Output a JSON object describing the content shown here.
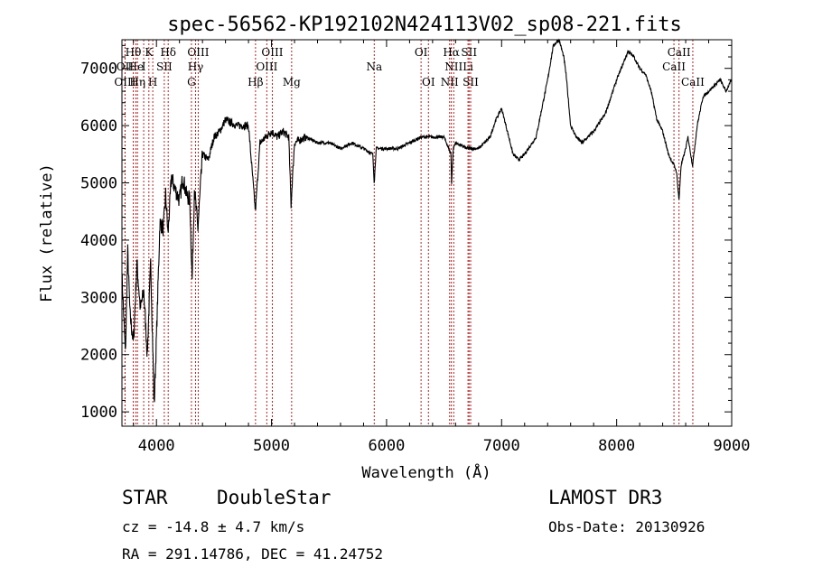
{
  "chart_data": {
    "type": "line",
    "title": "spec-56562-KP192102N424113V02_sp08-221.fits",
    "xlabel": "Wavelength (Å)",
    "ylabel": "Flux (relative)",
    "xlim": [
      3700,
      9000
    ],
    "ylim": [
      750,
      7500
    ],
    "xticks": [
      4000,
      5000,
      6000,
      7000,
      8000,
      9000
    ],
    "yticks": [
      1000,
      2000,
      3000,
      4000,
      5000,
      6000,
      7000
    ],
    "grid": false,
    "legend": "none",
    "line_color": "#000000",
    "marker_color": "#b22222",
    "series": [
      {
        "x": [
          3700,
          3730,
          3750,
          3770,
          3800,
          3830,
          3860,
          3890,
          3920,
          3950,
          3980,
          4000,
          4030,
          4060,
          4080,
          4100,
          4130,
          4160,
          4200,
          4230,
          4260,
          4290,
          4310,
          4330,
          4360,
          4400,
          4450,
          4500,
          4550,
          4600,
          4700,
          4800,
          4860,
          4900,
          4950,
          5000,
          5050,
          5100,
          5150,
          5170,
          5180,
          5200,
          5300,
          5400,
          5500,
          5600,
          5700,
          5800,
          5880,
          5893,
          5910,
          6000,
          6100,
          6200,
          6300,
          6400,
          6500,
          6560,
          6565,
          6580,
          6600,
          6700,
          6800,
          6900,
          6950,
          7000,
          7050,
          7100,
          7150,
          7200,
          7300,
          7400,
          7450,
          7500,
          7540,
          7560,
          7600,
          7650,
          7700,
          7750,
          7800,
          7900,
          8000,
          8100,
          8150,
          8200,
          8250,
          8300,
          8350,
          8400,
          8450,
          8500,
          8520,
          8542,
          8560,
          8600,
          8620,
          8660,
          8700,
          8750,
          8800,
          8850,
          8900,
          8950,
          9000
        ],
        "y": [
          3400,
          2000,
          3800,
          2700,
          2200,
          3600,
          2800,
          3100,
          2000,
          3600,
          1100,
          2300,
          4300,
          4200,
          4800,
          4100,
          5100,
          4900,
          4700,
          5100,
          4800,
          4700,
          3300,
          4900,
          4200,
          5500,
          5400,
          5800,
          5900,
          6100,
          6000,
          6000,
          4500,
          5700,
          5800,
          5900,
          5800,
          5900,
          5800,
          4600,
          5000,
          5700,
          5800,
          5700,
          5700,
          5600,
          5700,
          5600,
          5500,
          5000,
          5600,
          5600,
          5600,
          5700,
          5800,
          5800,
          5800,
          5500,
          5000,
          5600,
          5700,
          5600,
          5600,
          5800,
          6100,
          6300,
          5900,
          5500,
          5400,
          5500,
          5800,
          6800,
          7400,
          7500,
          7200,
          6900,
          6000,
          5800,
          5700,
          5800,
          5900,
          6200,
          6800,
          7300,
          7200,
          7000,
          6900,
          6600,
          6100,
          5900,
          5500,
          5300,
          5200,
          4700,
          5300,
          5600,
          5800,
          5300,
          6000,
          6500,
          6600,
          6700,
          6800,
          6600,
          6800
        ]
      }
    ],
    "spectral_lines": [
      {
        "label": "Hθ",
        "x": 3798,
        "row": 0
      },
      {
        "label": "K",
        "x": 3934,
        "row": 0
      },
      {
        "label": "Hδ",
        "x": 4102,
        "row": 0
      },
      {
        "label": "OIII",
        "x": 4363,
        "row": 0
      },
      {
        "label": "OIII",
        "x": 5007,
        "row": 0
      },
      {
        "label": "OI",
        "x": 6300,
        "row": 0
      },
      {
        "label": "Hα",
        "x": 6563,
        "row": 0
      },
      {
        "label": "SII",
        "x": 6717,
        "row": 0
      },
      {
        "label": "CaII",
        "x": 8542,
        "row": 0
      },
      {
        "label": "OII",
        "x": 3727,
        "row": 1
      },
      {
        "label": "He",
        "x": 3820,
        "row": 1
      },
      {
        "label": "I",
        "x": 3889,
        "row": 1
      },
      {
        "label": "SII",
        "x": 4068,
        "row": 1
      },
      {
        "label": "Hγ",
        "x": 4340,
        "row": 1
      },
      {
        "label": "OIII",
        "x": 4959,
        "row": 1
      },
      {
        "label": "Na",
        "x": 5893,
        "row": 1
      },
      {
        "label": "NII",
        "x": 6584,
        "row": 1
      },
      {
        "label": "Li",
        "x": 6708,
        "row": 1
      },
      {
        "label": "CaII",
        "x": 8498,
        "row": 1
      },
      {
        "label": "OIII",
        "x": 3727,
        "row": 2
      },
      {
        "label": "Hη",
        "x": 3835,
        "row": 2
      },
      {
        "label": "H",
        "x": 3968,
        "row": 2
      },
      {
        "label": "G",
        "x": 4304,
        "row": 2
      },
      {
        "label": "Hβ",
        "x": 4861,
        "row": 2
      },
      {
        "label": "Mg",
        "x": 5175,
        "row": 2
      },
      {
        "label": "OI",
        "x": 6364,
        "row": 2
      },
      {
        "label": "NII",
        "x": 6548,
        "row": 2
      },
      {
        "label": "SII",
        "x": 6731,
        "row": 2
      },
      {
        "label": "CaII",
        "x": 8662,
        "row": 2
      }
    ]
  },
  "footer": {
    "class_label": "STAR",
    "subclass_label": "DoubleStar",
    "survey_label": "LAMOST DR3",
    "redshift_text": "cz = -14.8 ± 4.7 km/s",
    "obs_date_text": "Obs-Date: 20130926",
    "coords_text": "RA = 291.14786, DEC =  41.24752"
  }
}
